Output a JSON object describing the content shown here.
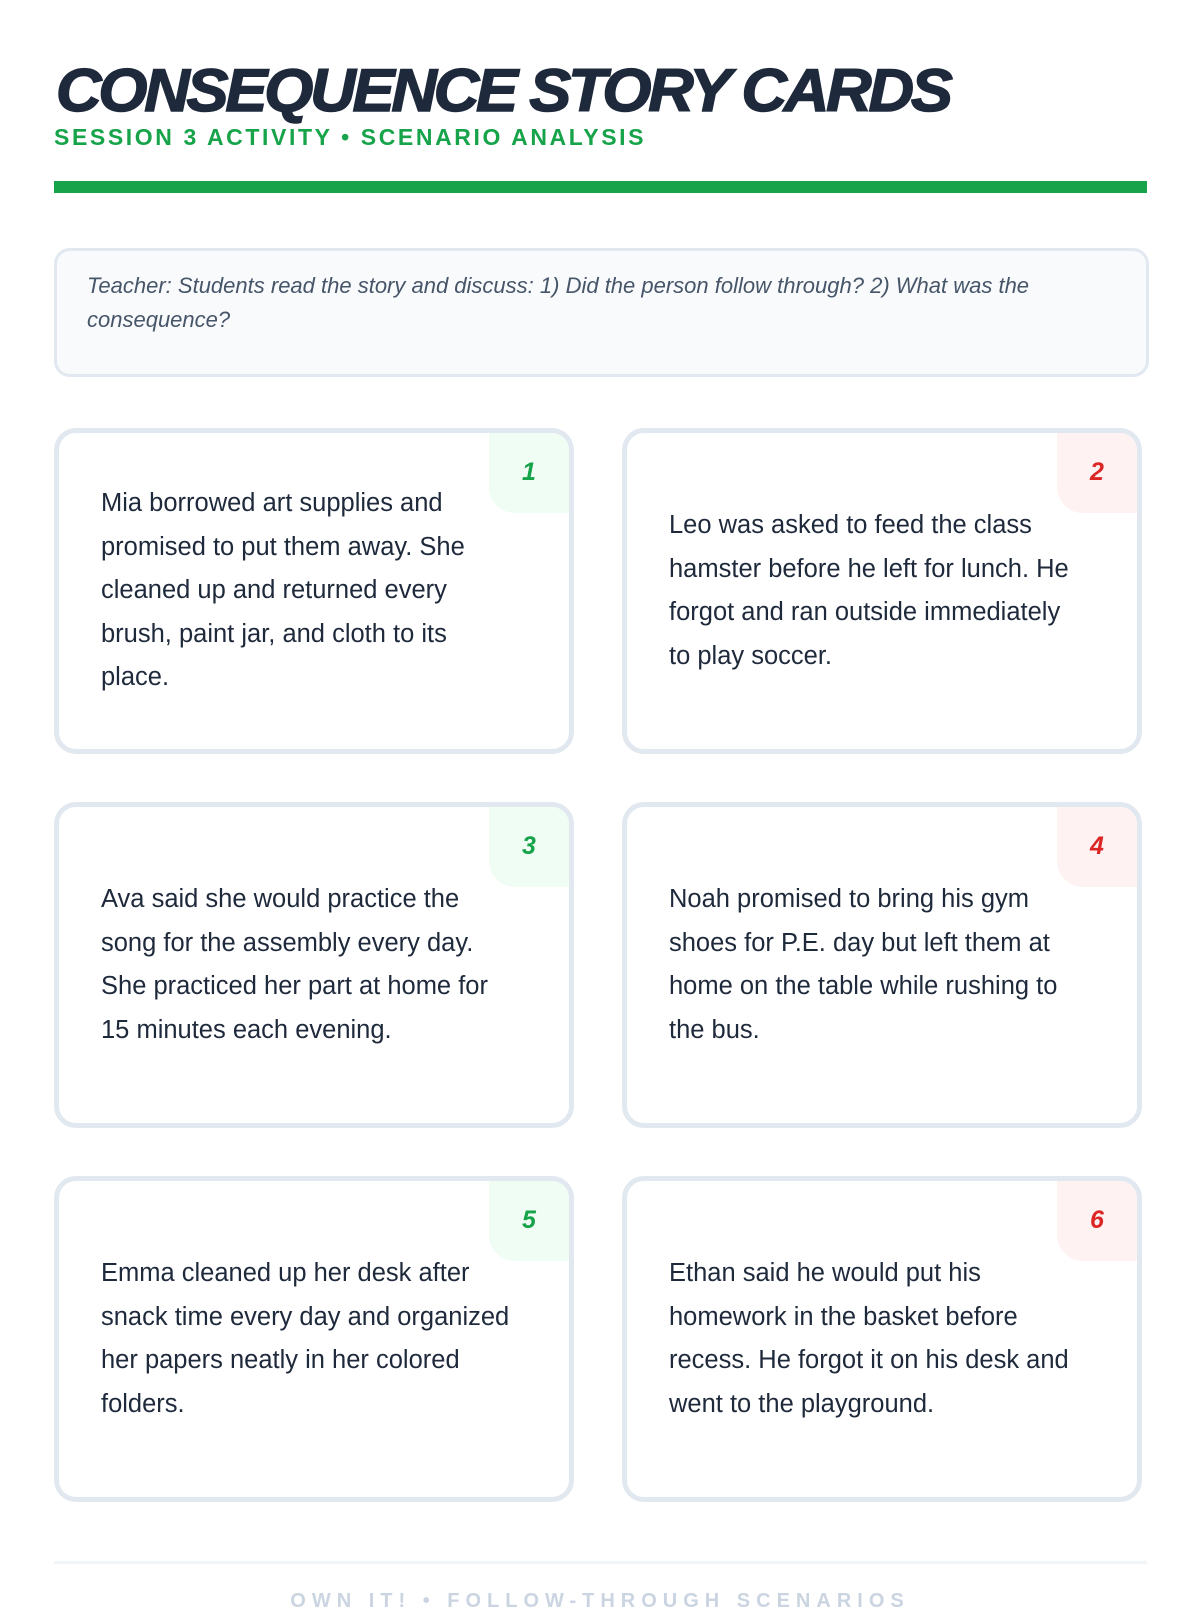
{
  "header": {
    "title": "CONSEQUENCE STORY CARDS",
    "subtitle": "SESSION 3 ACTIVITY • SCENARIO ANALYSIS",
    "accent_color": "#16a34a"
  },
  "note": {
    "text": "Teacher: Students read the story and discuss: 1) Did the person follow through? 2) What was the consequence?"
  },
  "cards": [
    {
      "number": "1",
      "type": "followed-through",
      "color": "#16a34a",
      "story": "Mia borrowed art supplies and promised to put them away. She cleaned up and returned every brush, paint jar, and cloth to its place."
    },
    {
      "number": "2",
      "type": "did-not-follow-through",
      "color": "#dc2626",
      "story": "Leo was asked to feed the class hamster before he left for lunch. He forgot and ran outside immediately to play soccer."
    },
    {
      "number": "3",
      "type": "followed-through",
      "color": "#16a34a",
      "story": "Ava said she would practice the song for the assembly every day. She practiced her part at home for 15 minutes each evening."
    },
    {
      "number": "4",
      "type": "did-not-follow-through",
      "color": "#dc2626",
      "story": "Noah promised to bring his gym shoes for P.E. day but left them at home on the table while rushing to the bus."
    },
    {
      "number": "5",
      "type": "followed-through",
      "color": "#16a34a",
      "story": "Emma cleaned up her desk after snack time every day and organized her papers neatly in her colored folders."
    },
    {
      "number": "6",
      "type": "did-not-follow-through",
      "color": "#dc2626",
      "story": "Ethan said he would put his homework in the basket before recess. He forgot it on his desk and went to the playground."
    }
  ],
  "footer": {
    "text": "OWN IT! • FOLLOW-THROUGH SCENARIOS"
  }
}
